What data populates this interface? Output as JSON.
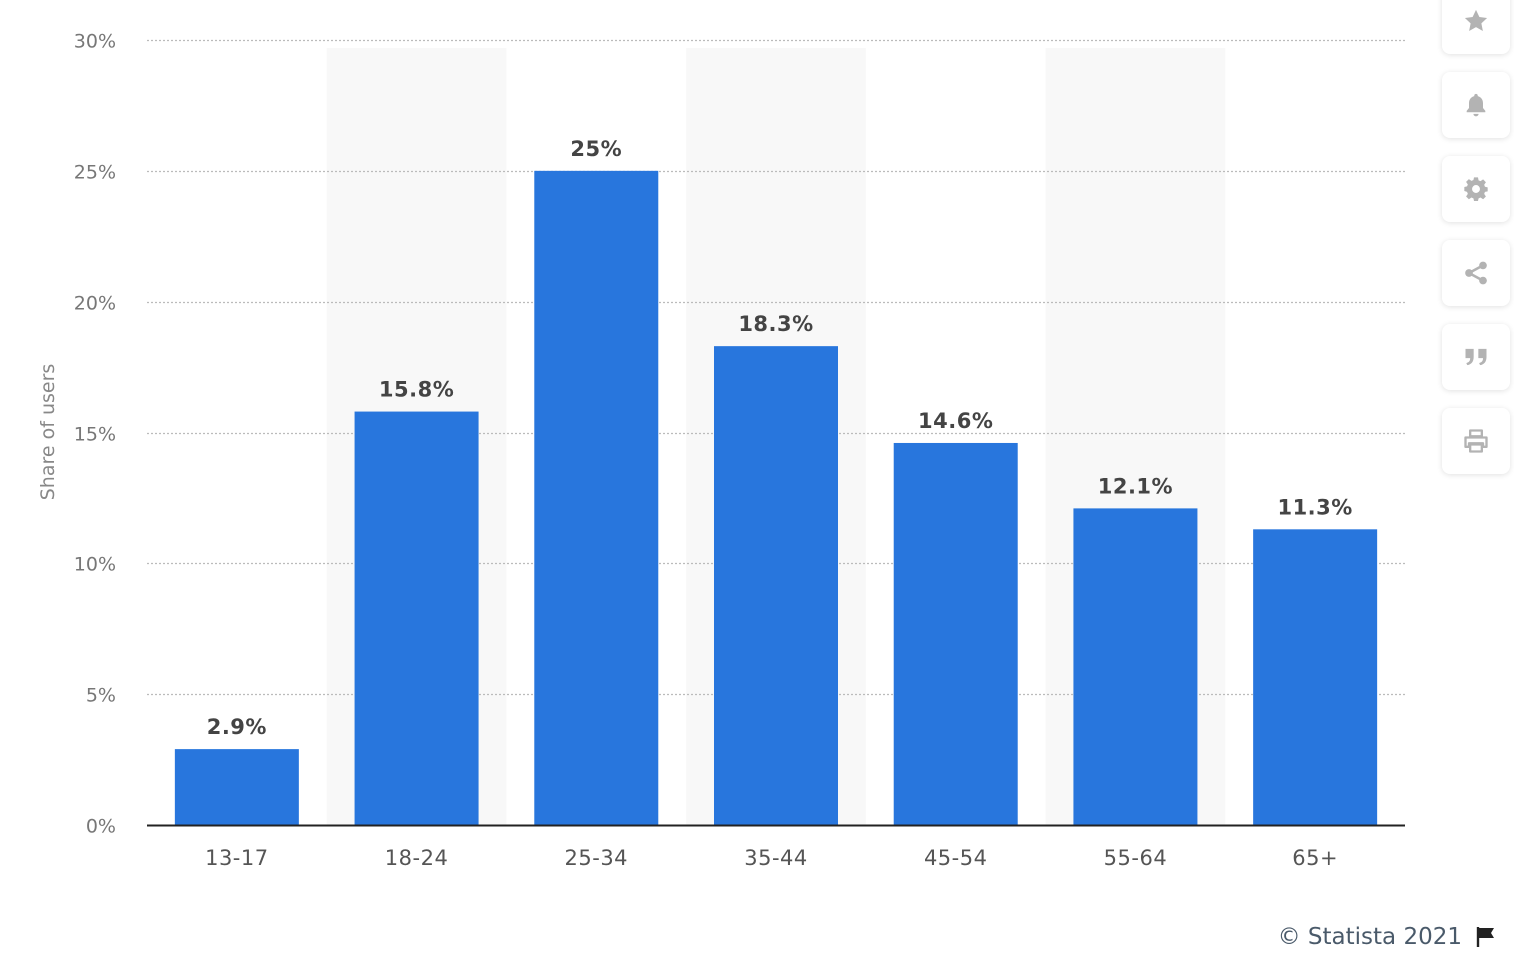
{
  "chart_data": {
    "type": "bar",
    "categories": [
      "13-17",
      "18-24",
      "25-34",
      "35-44",
      "45-54",
      "55-64",
      "65+"
    ],
    "values": [
      2.9,
      15.8,
      25,
      18.3,
      14.6,
      12.1,
      11.3
    ],
    "value_labels": [
      "2.9%",
      "15.8%",
      "25%",
      "18.3%",
      "14.6%",
      "12.1%",
      "11.3%"
    ],
    "title": "",
    "xlabel": "",
    "ylabel": "Share of users",
    "ylim": [
      0,
      30
    ],
    "yticks": [
      "0%",
      "5%",
      "10%",
      "15%",
      "20%",
      "25%",
      "30%"
    ],
    "ytick_values": [
      0,
      5,
      10,
      15,
      20,
      25,
      30
    ],
    "grid": true,
    "bar_color": "#2876dd",
    "alt_band_color": "#f8f8f8"
  },
  "toolbar": {
    "items": [
      "star-icon",
      "bell-icon",
      "gear-icon",
      "share-icon",
      "quote-icon",
      "print-icon"
    ]
  },
  "credits": {
    "text": "© Statista 2021"
  }
}
